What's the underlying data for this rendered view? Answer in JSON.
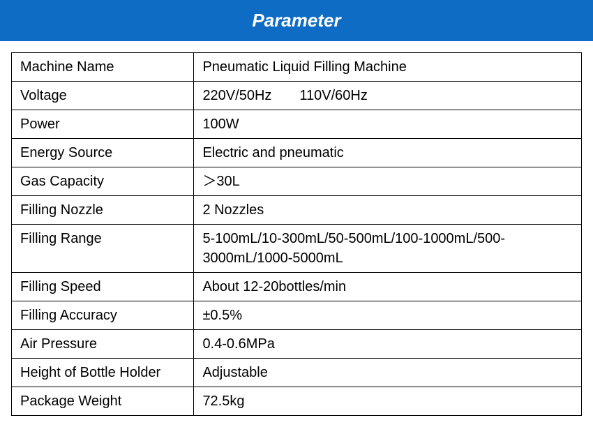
{
  "header": {
    "title": "Parameter",
    "background_color": "#0e6cc4",
    "text_color": "#ffffff",
    "font_size": 26
  },
  "table": {
    "font_size": 20,
    "text_color": "#000000",
    "border_color": "#000000",
    "rows": [
      {
        "label": "Machine Name",
        "value": "Pneumatic Liquid Filling Machine"
      },
      {
        "label": "Voltage",
        "value": "220V/50Hz  110V/60Hz"
      },
      {
        "label": "Power",
        "value": "100W"
      },
      {
        "label": "Energy Source",
        "value": "Electric and pneumatic"
      },
      {
        "label": "Gas Capacity",
        "value": "＞30L"
      },
      {
        "label": "Filling Nozzle",
        "value": "2 Nozzles"
      },
      {
        "label": "Filling Range",
        "value": "5-100mL/10-300mL/50-500mL/100-1000mL/500-3000mL/1000-5000mL"
      },
      {
        "label": "Filling Speed",
        "value": "About 12-20bottles/min"
      },
      {
        "label": "Filling Accuracy",
        "value": "±0.5%"
      },
      {
        "label": "Air Pressure",
        "value": "0.4-0.6MPa"
      },
      {
        "label": "Height of Bottle Holder",
        "value": "Adjustable"
      },
      {
        "label": "Package Weight",
        "value": "72.5kg"
      }
    ]
  }
}
